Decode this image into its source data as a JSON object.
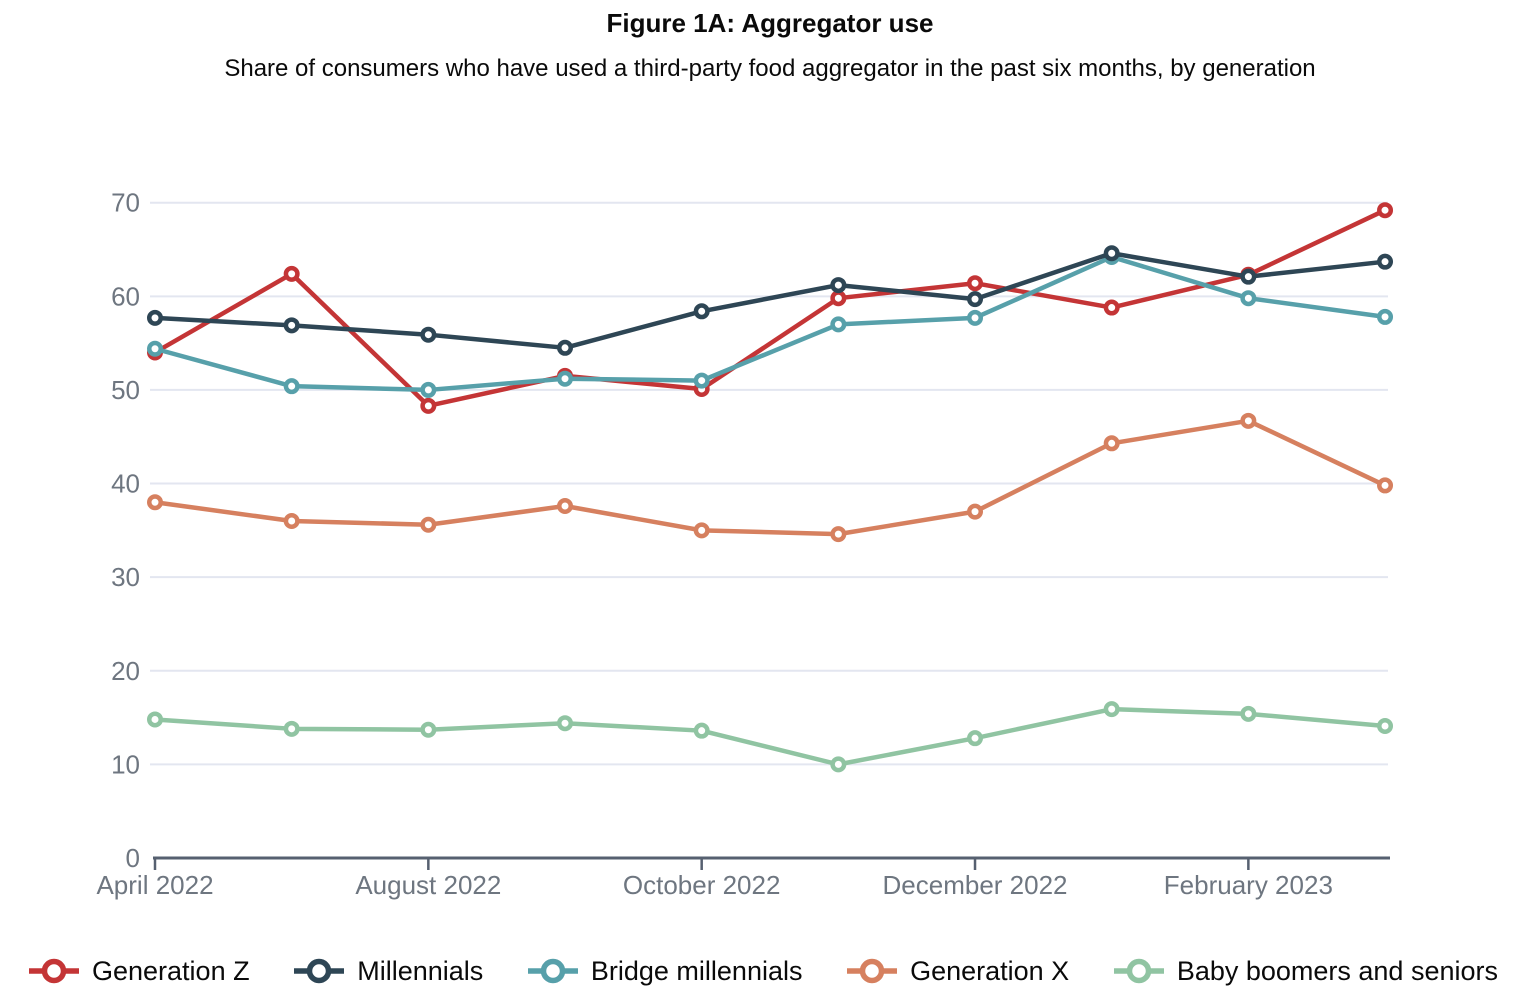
{
  "figure": {
    "title": "Figure 1A: Aggregator use",
    "subtitle": "Share of consumers who have used a third-party food aggregator in the past six months, by generation"
  },
  "colors": {
    "grid": "#e3e6f0",
    "axis": "#566070",
    "tick_label": "#6e7680",
    "text": "#0a0a0a",
    "background": "#ffffff"
  },
  "chart_data": {
    "type": "line",
    "title": "Figure 1A: Aggregator use",
    "subtitle": "Share of consumers who have used a third-party food aggregator in the past six months, by generation",
    "num_points": 10,
    "x_tick_labels": [
      {
        "position": 0,
        "label": "April 2022"
      },
      {
        "position": 2,
        "label": "August 2022"
      },
      {
        "position": 4,
        "label": "October 2022"
      },
      {
        "position": 6,
        "label": "December 2022"
      },
      {
        "position": 8,
        "label": "February 2023"
      }
    ],
    "series": [
      {
        "name": "Generation Z",
        "color": "#c43536",
        "values": [
          54.0,
          62.4,
          48.3,
          51.5,
          50.1,
          59.8,
          61.4,
          58.8,
          62.3,
          69.2
        ]
      },
      {
        "name": "Millennials",
        "color": "#2e4655",
        "values": [
          57.7,
          56.9,
          55.9,
          54.5,
          58.4,
          61.2,
          59.7,
          64.6,
          62.1,
          63.7
        ]
      },
      {
        "name": "Bridge millennials",
        "color": "#57a0aa",
        "values": [
          54.4,
          50.4,
          50.0,
          51.2,
          51.0,
          57.0,
          57.7,
          64.2,
          59.8,
          57.8
        ]
      },
      {
        "name": "Generation X",
        "color": "#d6805f",
        "values": [
          38.0,
          36.0,
          35.6,
          37.6,
          35.0,
          34.6,
          37.0,
          44.3,
          46.7,
          39.8
        ]
      },
      {
        "name": "Baby boomers and seniors",
        "color": "#90c4a2",
        "values": [
          14.8,
          13.8,
          13.7,
          14.4,
          13.6,
          10.0,
          12.8,
          15.9,
          15.4,
          14.1
        ]
      }
    ],
    "y_ticks": [
      0,
      10,
      20,
      30,
      40,
      50,
      60,
      70
    ],
    "ylim": [
      0,
      70
    ],
    "grid": "horizontal",
    "marker": "open-circle",
    "legend_position": "bottom"
  }
}
